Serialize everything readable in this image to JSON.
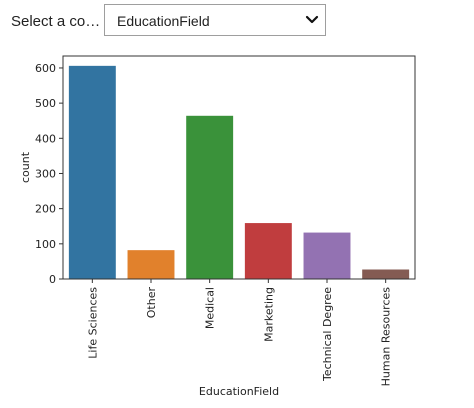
{
  "control": {
    "label": "Select a co…",
    "selected_value": "EducationField",
    "chevron_icon": "chevron-down-icon"
  },
  "chart_data": {
    "type": "bar",
    "categories": [
      "Life Sciences",
      "Other",
      "Medical",
      "Marketing",
      "Technical Degree",
      "Human Resources"
    ],
    "values": [
      606,
      82,
      464,
      159,
      132,
      27
    ],
    "colors": [
      "#3274a1",
      "#e1812c",
      "#3a923a",
      "#c03d3e",
      "#9372b2",
      "#845b53"
    ],
    "xlabel": "EducationField",
    "ylabel": "count",
    "ylim": [
      0,
      634
    ],
    "yticks": [
      0,
      100,
      200,
      300,
      400,
      500,
      600
    ],
    "grid": false
  }
}
